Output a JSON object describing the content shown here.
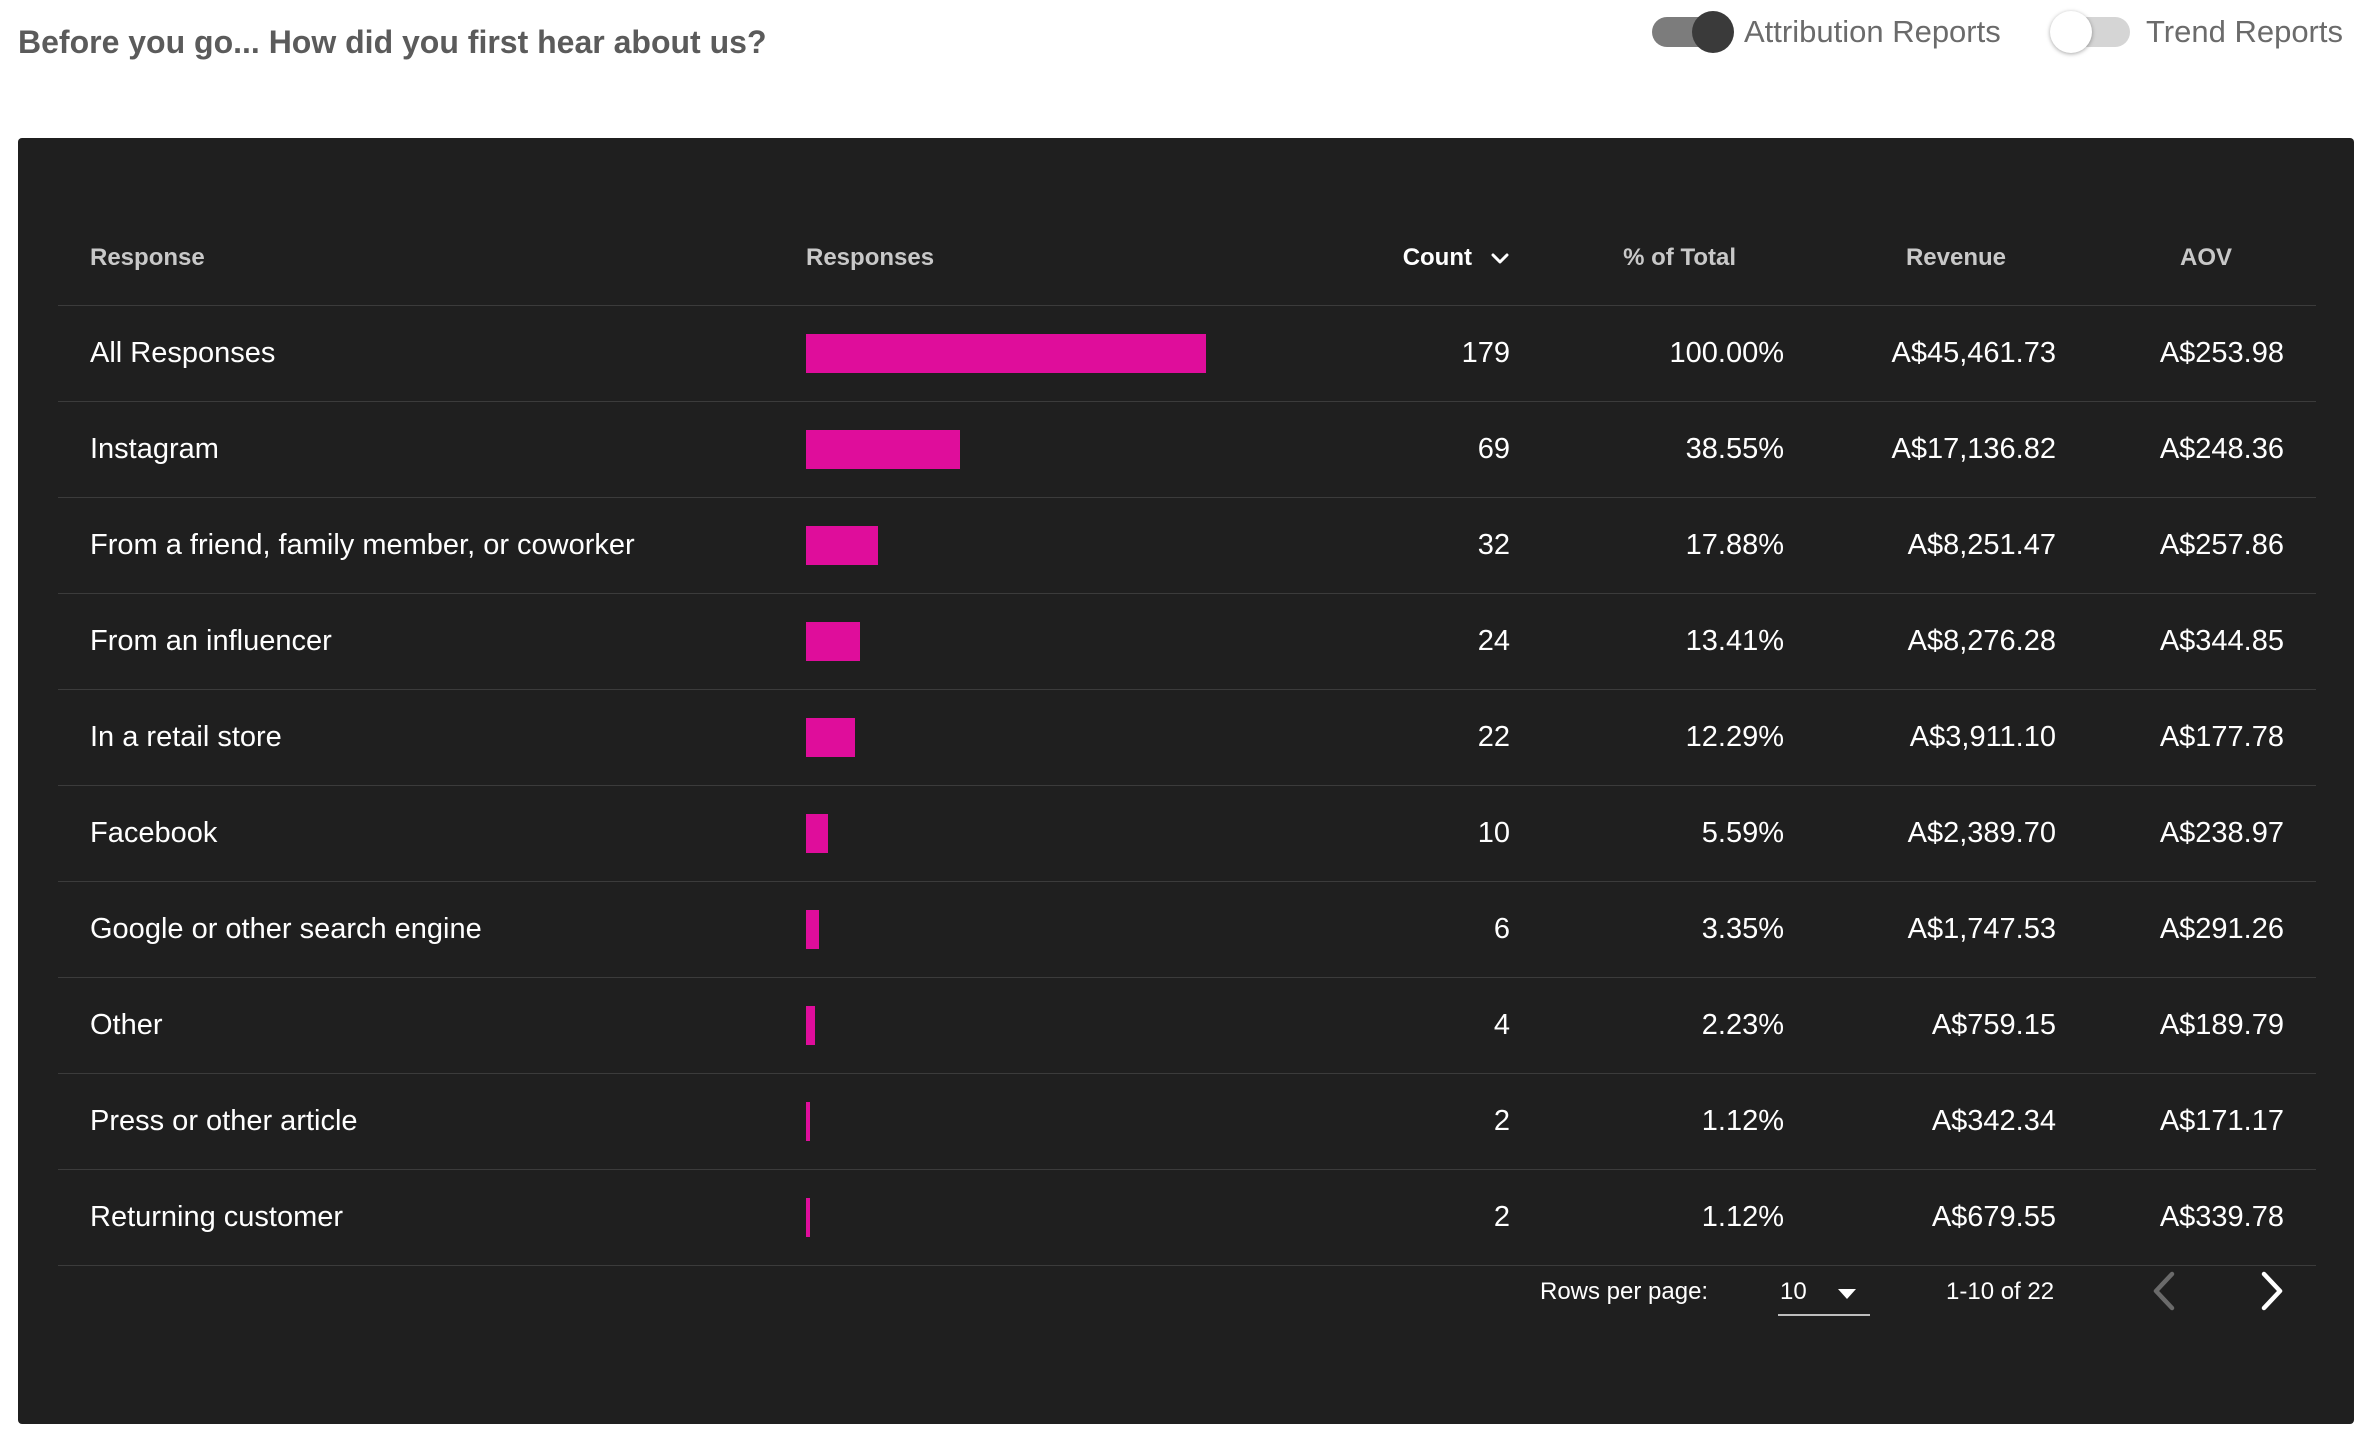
{
  "header": {
    "question": "Before you go... How did you first hear about us?",
    "toggles": [
      {
        "label": "Attribution Reports",
        "on": true
      },
      {
        "label": "Trend Reports",
        "on": false
      }
    ]
  },
  "table": {
    "columns": {
      "response": "Response",
      "responses": "Responses",
      "count": "Count",
      "pct": "% of Total",
      "revenue": "Revenue",
      "aov": "AOV"
    },
    "sort_icon": "chevron-down-icon",
    "bar_color": "#df0d9b",
    "rows": [
      {
        "response": "All Responses",
        "count": 179,
        "count_text": "179",
        "pct": "100.00%",
        "revenue": "A$45,461.73",
        "aov": "A$253.98"
      },
      {
        "response": "Instagram",
        "count": 69,
        "count_text": "69",
        "pct": "38.55%",
        "revenue": "A$17,136.82",
        "aov": "A$248.36"
      },
      {
        "response": "From a friend, family member, or coworker",
        "count": 32,
        "count_text": "32",
        "pct": "17.88%",
        "revenue": "A$8,251.47",
        "aov": "A$257.86"
      },
      {
        "response": "From an influencer",
        "count": 24,
        "count_text": "24",
        "pct": "13.41%",
        "revenue": "A$8,276.28",
        "aov": "A$344.85"
      },
      {
        "response": "In a retail store",
        "count": 22,
        "count_text": "22",
        "pct": "12.29%",
        "revenue": "A$3,911.10",
        "aov": "A$177.78"
      },
      {
        "response": "Facebook",
        "count": 10,
        "count_text": "10",
        "pct": "5.59%",
        "revenue": "A$2,389.70",
        "aov": "A$238.97"
      },
      {
        "response": "Google or other search engine",
        "count": 6,
        "count_text": "6",
        "pct": "3.35%",
        "revenue": "A$1,747.53",
        "aov": "A$291.26"
      },
      {
        "response": "Other",
        "count": 4,
        "count_text": "4",
        "pct": "2.23%",
        "revenue": "A$759.15",
        "aov": "A$189.79"
      },
      {
        "response": "Press or other article",
        "count": 2,
        "count_text": "2",
        "pct": "1.12%",
        "revenue": "A$342.34",
        "aov": "A$171.17"
      },
      {
        "response": "Returning customer",
        "count": 2,
        "count_text": "2",
        "pct": "1.12%",
        "revenue": "A$679.55",
        "aov": "A$339.78"
      }
    ]
  },
  "pagination": {
    "rows_per_page_label": "Rows per page:",
    "rows_per_page": "10",
    "range": "1-10 of 22",
    "prev_icon": "chevron-left-icon",
    "next_icon": "chevron-right-icon"
  }
}
